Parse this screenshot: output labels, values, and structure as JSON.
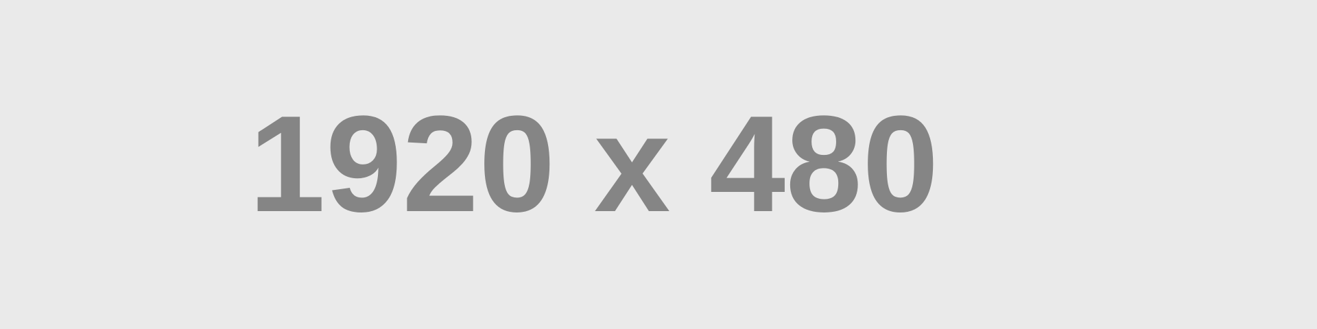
{
  "placeholder": {
    "label": "1920 x 480",
    "background_color": "#eaeaea",
    "text_color": "#858585"
  }
}
